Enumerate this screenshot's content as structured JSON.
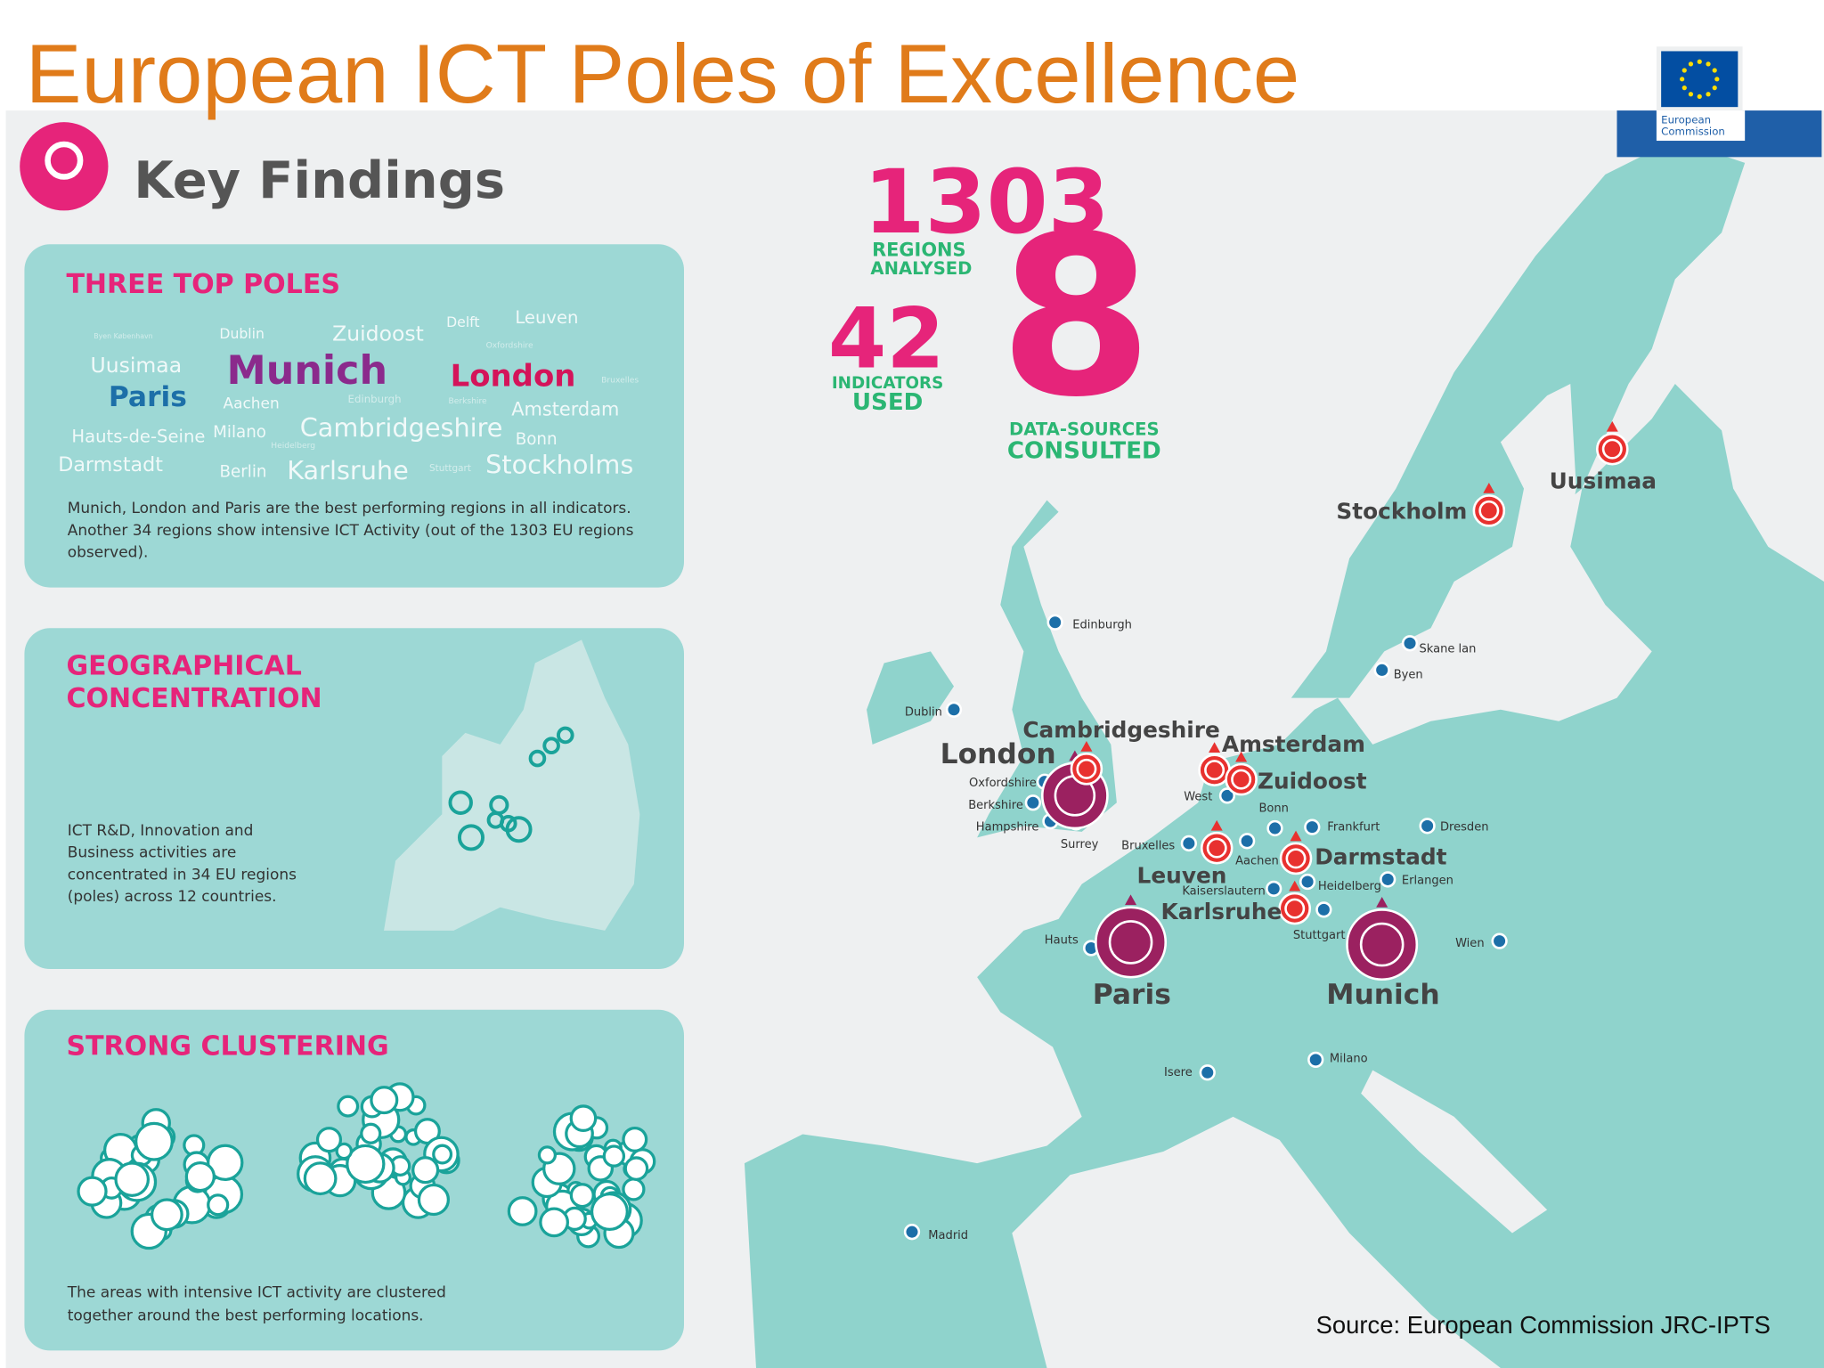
{
  "header": {
    "title": "European ICT Poles of Excellence",
    "logo_lines": [
      "European",
      "Commission"
    ]
  },
  "key_findings": {
    "heading": "Key Findings",
    "panels": [
      {
        "title_lines": [
          "THREE TOP POLES"
        ],
        "word_cloud": [
          "Byen København",
          "Dublin",
          "Zuidoost",
          "Delft",
          "Leuven",
          "Oxfordshire",
          "Uusimaa",
          "Munich",
          "London",
          "Bruxelles",
          "Paris",
          "Aachen",
          "Edinburgh",
          "Berkshire",
          "Amsterdam",
          "Hauts-de-Seine",
          "Milano",
          "Cambridgeshire",
          "Heidelberg",
          "Bonn",
          "Darmstadt",
          "Berlin",
          "Karlsruhe",
          "Stuttgart",
          "Stockholms"
        ],
        "description_lines": [
          "Munich, London and Paris are the best performing regions in all indicators.",
          "Another 34 regions show intensive ICT Activity (out of the 1303 EU regions",
          "observed)."
        ]
      },
      {
        "title_lines": [
          "GEOGRAPHICAL",
          "CONCENTRATION"
        ],
        "description_lines": [
          "ICT R&D, Innovation and",
          "Business activities are",
          "concentrated in 34 EU regions",
          "(poles) across 12 countries."
        ]
      },
      {
        "title_lines": [
          "STRONG CLUSTERING"
        ],
        "description_lines": [
          "The areas with intensive ICT activity are clustered",
          "together around the best performing locations."
        ]
      }
    ]
  },
  "stats": [
    {
      "number": 1303,
      "label_lines": [
        "REGIONS",
        "ANALYSED"
      ]
    },
    {
      "number": 42,
      "label_lines": [
        "INDICATORS",
        "USED"
      ]
    },
    {
      "number": 8,
      "label_lines": [
        "DATA-SOURCES",
        "CONSULTED"
      ]
    }
  ],
  "map": {
    "poles": [
      "London",
      "Cambridgeshire",
      "Amsterdam",
      "Zuidoost",
      "Leuven",
      "Darmstadt",
      "Karlsruhe",
      "Paris",
      "Munich",
      "Stockholm",
      "Uusimaa"
    ],
    "regions": [
      "Edinburgh",
      "Dublin",
      "Skane lan",
      "Byen",
      "Oxfordshire",
      "Berkshire",
      "Hampshire",
      "Surrey",
      "West",
      "Bonn",
      "Frankfurt",
      "Dresden",
      "Bruxelles",
      "Aachen",
      "Heidelberg",
      "Erlangen",
      "Kaiserslautern",
      "Stuttgart",
      "Wien",
      "Hauts",
      "Isere",
      "Milano",
      "Madrid"
    ]
  },
  "source": "Source: European Commission JRC-IPTS"
}
